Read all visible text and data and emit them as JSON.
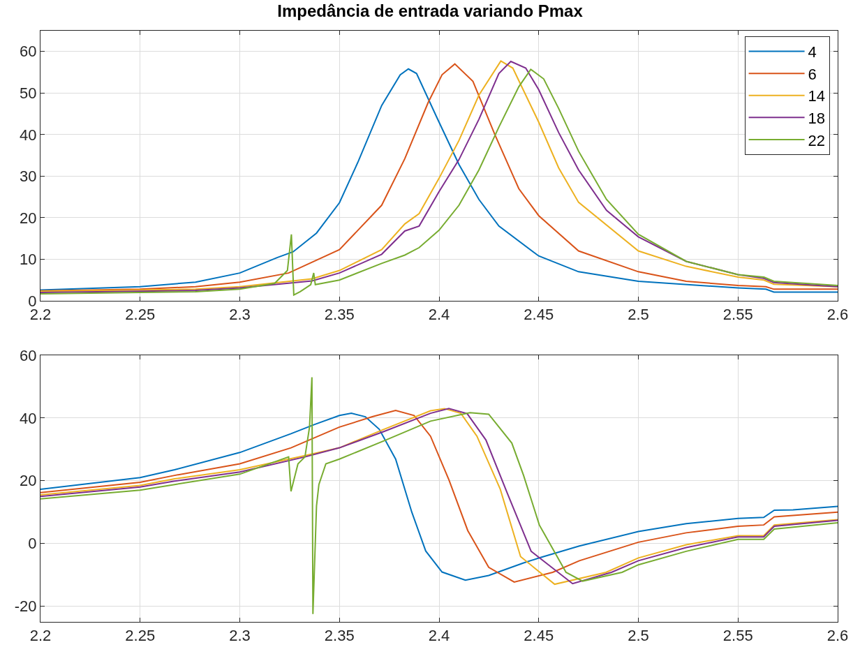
{
  "chart_data": [
    {
      "type": "line",
      "title": "Impedância de entrada variando Pmax",
      "xlim": [
        2.2,
        2.6
      ],
      "ylim": [
        0,
        65
      ],
      "xticks": [
        2.2,
        2.25,
        2.3,
        2.35,
        2.4,
        2.45,
        2.5,
        2.55,
        2.6
      ],
      "yticks": [
        0,
        10,
        20,
        30,
        40,
        50,
        60
      ],
      "grid": true,
      "legend": "top right",
      "series": [
        {
          "name": "4",
          "color": "#0072bd",
          "x": [
            2.2,
            2.25,
            2.2778,
            2.3,
            2.3187,
            2.3268,
            2.3385,
            2.35,
            2.3595,
            2.3712,
            2.3805,
            2.3846,
            2.3887,
            2.399,
            2.41,
            2.42,
            2.43,
            2.45,
            2.47,
            2.5,
            2.55,
            2.564,
            2.568,
            2.6
          ],
          "values": [
            2.6,
            3.4,
            4.5,
            6.7,
            10.4,
            11.8,
            16.3,
            23.6,
            33.6,
            47,
            54.4,
            55.8,
            54.7,
            44,
            32.8,
            24.4,
            18,
            10.8,
            7,
            4.7,
            3.1,
            2.8,
            2.1,
            2.1
          ]
        },
        {
          "name": "6",
          "color": "#d95319",
          "x": [
            2.2,
            2.25,
            2.2778,
            2.3,
            2.3245,
            2.35,
            2.3712,
            2.3828,
            2.3945,
            2.4015,
            2.4079,
            2.417,
            2.428,
            2.44,
            2.45,
            2.47,
            2.5,
            2.524,
            2.55,
            2.564,
            2.568,
            2.6
          ],
          "values": [
            2.4,
            2.8,
            3.4,
            4.5,
            6.7,
            12.3,
            23,
            34.2,
            47.7,
            54.4,
            57,
            52.8,
            40,
            27,
            20.5,
            12,
            7,
            4.7,
            3.7,
            3.4,
            2.8,
            2.8
          ]
        },
        {
          "name": "14",
          "color": "#edb120",
          "x": [
            2.2,
            2.25,
            2.2778,
            2.3,
            2.3362,
            2.35,
            2.3712,
            2.3828,
            2.39,
            2.4,
            2.41,
            2.42,
            2.431,
            2.437,
            2.45,
            2.46,
            2.47,
            2.5,
            2.524,
            2.55,
            2.563,
            2.568,
            2.6
          ],
          "values": [
            2.3,
            2.6,
            2.8,
            3.4,
            5.3,
            7.3,
            12.3,
            18.5,
            21,
            29.5,
            38.6,
            49.5,
            57.7,
            56,
            43,
            32,
            23.7,
            12,
            8.3,
            5.7,
            5,
            4,
            3.4
          ]
        },
        {
          "name": "18",
          "color": "#7e2f8e",
          "x": [
            2.2,
            2.25,
            2.2778,
            2.3,
            2.3362,
            2.35,
            2.3712,
            2.3828,
            2.39,
            2.4,
            2.41,
            2.42,
            2.43,
            2.436,
            2.4435,
            2.45,
            2.46,
            2.47,
            2.484,
            2.5,
            2.524,
            2.55,
            2.563,
            2.568,
            2.6
          ],
          "values": [
            2.0,
            2.3,
            2.5,
            3.1,
            4.8,
            6.7,
            11.2,
            16.8,
            18,
            26.3,
            34,
            43.7,
            54.7,
            57.6,
            56,
            50.8,
            40.5,
            31.5,
            21.8,
            15.4,
            9.5,
            6.3,
            5.4,
            4.4,
            3.4
          ]
        },
        {
          "name": "22",
          "color": "#77ac30",
          "x": [
            2.2,
            2.25,
            2.2778,
            2.3,
            2.3175,
            2.3239,
            2.3259,
            2.3271,
            2.3303,
            2.3356,
            2.3371,
            2.3379,
            2.35,
            2.3712,
            2.3828,
            2.39,
            2.4,
            2.41,
            2.42,
            2.43,
            2.44,
            2.446,
            2.4525,
            2.46,
            2.47,
            2.484,
            2.5,
            2.524,
            2.55,
            2.563,
            2.568,
            2.6
          ],
          "values": [
            1.7,
            2.0,
            2.2,
            2.8,
            4.2,
            7.3,
            16,
            1.4,
            2.2,
            3.9,
            6.7,
            3.9,
            5,
            9,
            11,
            12.8,
            17,
            23,
            31.5,
            41.8,
            51.5,
            55.7,
            53.4,
            46.3,
            36,
            24.4,
            16,
            9.5,
            6.3,
            5.7,
            4.7,
            3.7
          ]
        }
      ]
    },
    {
      "type": "line",
      "xlim": [
        2.2,
        2.6
      ],
      "ylim": [
        -25,
        60
      ],
      "xticks": [
        2.2,
        2.25,
        2.3,
        2.35,
        2.4,
        2.45,
        2.5,
        2.55,
        2.6
      ],
      "yticks": [
        -20,
        0,
        20,
        40,
        60
      ],
      "grid": true,
      "series": [
        {
          "color": "#0072bd",
          "x": [
            2.2,
            2.25,
            2.2673,
            2.3,
            2.3257,
            2.3373,
            2.35,
            2.356,
            2.363,
            2.37,
            2.3782,
            2.3863,
            2.3933,
            2.4015,
            2.4132,
            2.4249,
            2.4424,
            2.4503,
            2.4704,
            2.5,
            2.524,
            2.55,
            2.5629,
            2.5682,
            2.5776,
            2.6
          ],
          "values": [
            17.3,
            21,
            23.5,
            29,
            35,
            37.9,
            40.8,
            41.5,
            40.4,
            36.4,
            26.9,
            10,
            -2.4,
            -9.1,
            -11.7,
            -10.2,
            -6.2,
            -4.6,
            -0.8,
            3.8,
            6.3,
            8,
            8.3,
            10.6,
            10.7,
            11.8
          ]
        },
        {
          "color": "#d95319",
          "x": [
            2.2,
            2.25,
            2.2673,
            2.3,
            2.3257,
            2.35,
            2.3665,
            2.3782,
            2.3875,
            2.3957,
            2.405,
            2.4144,
            2.4249,
            2.4377,
            2.457,
            2.4704,
            2.5,
            2.524,
            2.55,
            2.5629,
            2.5682,
            2.6
          ],
          "values": [
            16.2,
            19.5,
            21.7,
            25.4,
            30.5,
            37.1,
            40.4,
            42.4,
            40.8,
            34.2,
            20.2,
            4.1,
            -7.6,
            -12.3,
            -9.2,
            -5.5,
            0.4,
            3.4,
            5.5,
            5.9,
            8.5,
            10
          ]
        },
        {
          "color": "#edb120",
          "x": [
            2.2,
            2.25,
            2.2673,
            2.3,
            2.3327,
            2.35,
            2.3723,
            2.3957,
            2.4027,
            2.4109,
            2.419,
            2.4307,
            2.4409,
            2.458,
            2.4838,
            2.5,
            2.524,
            2.55,
            2.5629,
            2.5682,
            2.6
          ],
          "values": [
            15.5,
            18.5,
            20.6,
            23.5,
            28,
            30.5,
            36.4,
            42.3,
            43,
            41.5,
            34.2,
            17.3,
            -4.2,
            -13,
            -9.2,
            -4.6,
            -0.4,
            2.5,
            2.5,
            5.9,
            7.6
          ]
        },
        {
          "color": "#7e2f8e",
          "x": [
            2.2,
            2.25,
            2.2673,
            2.3,
            2.3327,
            2.35,
            2.3723,
            2.3957,
            2.4049,
            2.4141,
            2.4235,
            2.4342,
            2.4462,
            2.467,
            2.4865,
            2.5,
            2.524,
            2.55,
            2.5629,
            2.5682,
            2.6
          ],
          "values": [
            15,
            18,
            19.9,
            22.8,
            27.6,
            30.5,
            35.7,
            41.5,
            43,
            41.4,
            33,
            16.1,
            -2.5,
            -12.8,
            -9.2,
            -5.5,
            -1.3,
            2.1,
            2.1,
            5.5,
            7.4
          ]
        },
        {
          "color": "#77ac30",
          "x": [
            2.2,
            2.25,
            2.2673,
            2.3,
            2.3245,
            2.3257,
            2.3292,
            2.3327,
            2.335,
            2.3362,
            2.3367,
            2.3385,
            2.3397,
            2.3432,
            2.35,
            2.3723,
            2.3957,
            2.4155,
            2.4249,
            2.4365,
            2.4424,
            2.4503,
            2.4637,
            2.472,
            2.4918,
            2.5,
            2.524,
            2.55,
            2.5629,
            2.5682,
            2.6
          ],
          "values": [
            14.2,
            17,
            18.8,
            22.1,
            27.6,
            16.6,
            25.4,
            27.6,
            37.1,
            53,
            -22.5,
            12,
            18.8,
            25.4,
            26.9,
            32.7,
            39,
            41.7,
            41.2,
            32,
            21.7,
            5.9,
            -9.2,
            -12,
            -9.2,
            -6.8,
            -2.5,
            1.3,
            1.3,
            4.6,
            6.6
          ]
        }
      ]
    }
  ]
}
